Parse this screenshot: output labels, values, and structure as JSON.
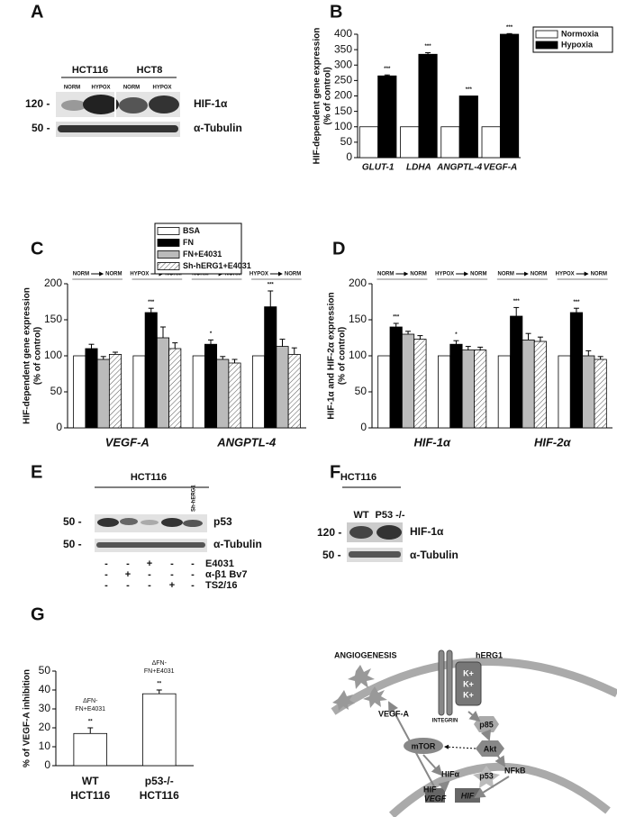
{
  "chart_data": [
    {
      "type": "bar",
      "panel": "B",
      "categories": [
        "GLUT-1",
        "LDHA",
        "ANGPTL-4",
        "VEGF-A"
      ],
      "series": [
        {
          "name": "Normoxia",
          "color": "#ffffff",
          "values": [
            100,
            100,
            100,
            100
          ],
          "errors": [
            0,
            0,
            0,
            0
          ]
        },
        {
          "name": "Hypoxia",
          "color": "#000000",
          "values": [
            265,
            335,
            200,
            400
          ],
          "errors": [
            3,
            5,
            0,
            2
          ],
          "annotations": [
            "***",
            "***",
            "***",
            "***"
          ]
        }
      ],
      "ylabel": [
        "HIF-dependent gene expression",
        "(% of control)"
      ],
      "ylim": [
        0,
        400
      ],
      "yticks": [
        0,
        50,
        100,
        150,
        200,
        250,
        300,
        350,
        400
      ]
    },
    {
      "type": "bar",
      "panel": "C",
      "categories": [
        "NORM",
        "HYPOX",
        "NORM",
        "HYPOX"
      ],
      "category_to": [
        "NORM",
        "NORM",
        "NORM",
        "NORM"
      ],
      "gene_labels": [
        "VEGF-A",
        "ANGPTL-4"
      ],
      "series": [
        {
          "name": "BSA",
          "color": "#ffffff",
          "values": [
            100,
            100,
            100,
            100
          ],
          "errors": [
            0,
            0,
            0,
            0
          ]
        },
        {
          "name": "FN",
          "color": "#000000",
          "values": [
            110,
            160,
            116,
            168
          ],
          "errors": [
            6,
            6,
            6,
            22
          ],
          "annotations": [
            null,
            "***",
            "*",
            "***"
          ]
        },
        {
          "name": "FN+E4031",
          "color": "#bbbbbb",
          "values": [
            95,
            125,
            95,
            113
          ],
          "errors": [
            4,
            15,
            4,
            10
          ]
        },
        {
          "name": "Sh-hERG1+E4031",
          "color": "#ffffff",
          "hatch": true,
          "values": [
            102,
            110,
            90,
            102
          ],
          "errors": [
            3,
            8,
            5,
            9
          ]
        }
      ],
      "ylabel": [
        "HIF-dependent gene expression",
        "(% of control)"
      ],
      "ylim": [
        0,
        200
      ],
      "yticks": [
        0,
        50,
        100,
        150,
        200
      ]
    },
    {
      "type": "bar",
      "panel": "D",
      "categories": [
        "NORM",
        "HYPOX",
        "NORM",
        "HYPOX"
      ],
      "category_to": [
        "NORM",
        "NORM",
        "NORM",
        "NORM"
      ],
      "gene_labels": [
        "HIF-1α",
        "HIF-2α"
      ],
      "series": [
        {
          "name": "BSA",
          "color": "#ffffff",
          "values": [
            100,
            100,
            100,
            100
          ],
          "errors": [
            0,
            0,
            0,
            0
          ]
        },
        {
          "name": "FN",
          "color": "#000000",
          "values": [
            140,
            116,
            155,
            160
          ],
          "errors": [
            5,
            5,
            12,
            6
          ],
          "annotations": [
            "***",
            "*",
            "***",
            "***"
          ]
        },
        {
          "name": "FN+E4031",
          "color": "#bbbbbb",
          "values": [
            130,
            108,
            122,
            100
          ],
          "errors": [
            4,
            5,
            9,
            7
          ]
        },
        {
          "name": "Sh-hERG1+E4031",
          "color": "#ffffff",
          "hatch": true,
          "values": [
            123,
            108,
            120,
            95
          ],
          "errors": [
            5,
            4,
            6,
            4
          ]
        }
      ],
      "ylabel": [
        "HIF-1α and HIF-2α expression",
        "(% of control)"
      ],
      "ylim": [
        0,
        200
      ],
      "yticks": [
        0,
        50,
        100,
        150,
        200
      ]
    },
    {
      "type": "bar",
      "panel": "G",
      "categories": [
        "WT",
        "p53-/-"
      ],
      "category_sub": [
        "HCT116",
        "HCT116"
      ],
      "color": "#ffffff",
      "values": [
        17,
        38
      ],
      "errors": [
        3,
        2
      ],
      "annotations": [
        "**",
        "**"
      ],
      "notes": [
        [
          "ΔFN-",
          "FN+E4031"
        ],
        [
          "ΔFN-",
          "FN+E4031"
        ]
      ],
      "ylabel": [
        "% of VEGF-A inhibition"
      ],
      "ylim": [
        0,
        50
      ],
      "yticks": [
        0,
        10,
        20,
        30,
        40,
        50
      ]
    }
  ],
  "blots": {
    "A": {
      "panel": "A",
      "cell_lines": [
        "HCT116",
        "HCT8"
      ],
      "lanes": [
        "NORM",
        "HYPOX",
        "NORM",
        "HYPOX"
      ],
      "markers": [
        "120 -",
        "50 -"
      ],
      "proteins": [
        "HIF-1α",
        "α-Tubulin"
      ]
    },
    "E": {
      "panel": "E",
      "cell_line": "HCT116",
      "lane_note": "Sh-hERG1",
      "markers": [
        "50 -",
        "50 -"
      ],
      "proteins": [
        "p53",
        "α-Tubulin"
      ],
      "treatments": [
        {
          "name": "E4031",
          "signs": [
            "-",
            "-",
            "+",
            "-",
            "-"
          ]
        },
        {
          "name": "α-β1 Bv7",
          "signs": [
            "-",
            "+",
            "-",
            "-",
            "-"
          ]
        },
        {
          "name": "TS2/16",
          "signs": [
            "-",
            "-",
            "-",
            "+",
            "-"
          ]
        }
      ]
    },
    "F": {
      "panel": "F",
      "cell_line": "HCT116",
      "lanes": [
        "WT",
        "P53 -/-"
      ],
      "markers": [
        "120 -",
        "50 -"
      ],
      "proteins": [
        "HIF-1α",
        "α-Tubulin"
      ]
    }
  },
  "diagram": {
    "angiogenesis": "ANGIOGENESIS",
    "vegf_a": "VEGF-A",
    "potassium": [
      "K+",
      "K+",
      "K+"
    ],
    "herg1": "hERG1",
    "integrin": "INTEGRIN",
    "p85": "p85",
    "akt": "Akt",
    "mtor": "mTOR",
    "nfkb": "NFkB",
    "hif_alpha": "HIFα",
    "p53": "p53",
    "hif_left": "HIF",
    "vegf": "VEGF",
    "hif_right": "HIF"
  }
}
